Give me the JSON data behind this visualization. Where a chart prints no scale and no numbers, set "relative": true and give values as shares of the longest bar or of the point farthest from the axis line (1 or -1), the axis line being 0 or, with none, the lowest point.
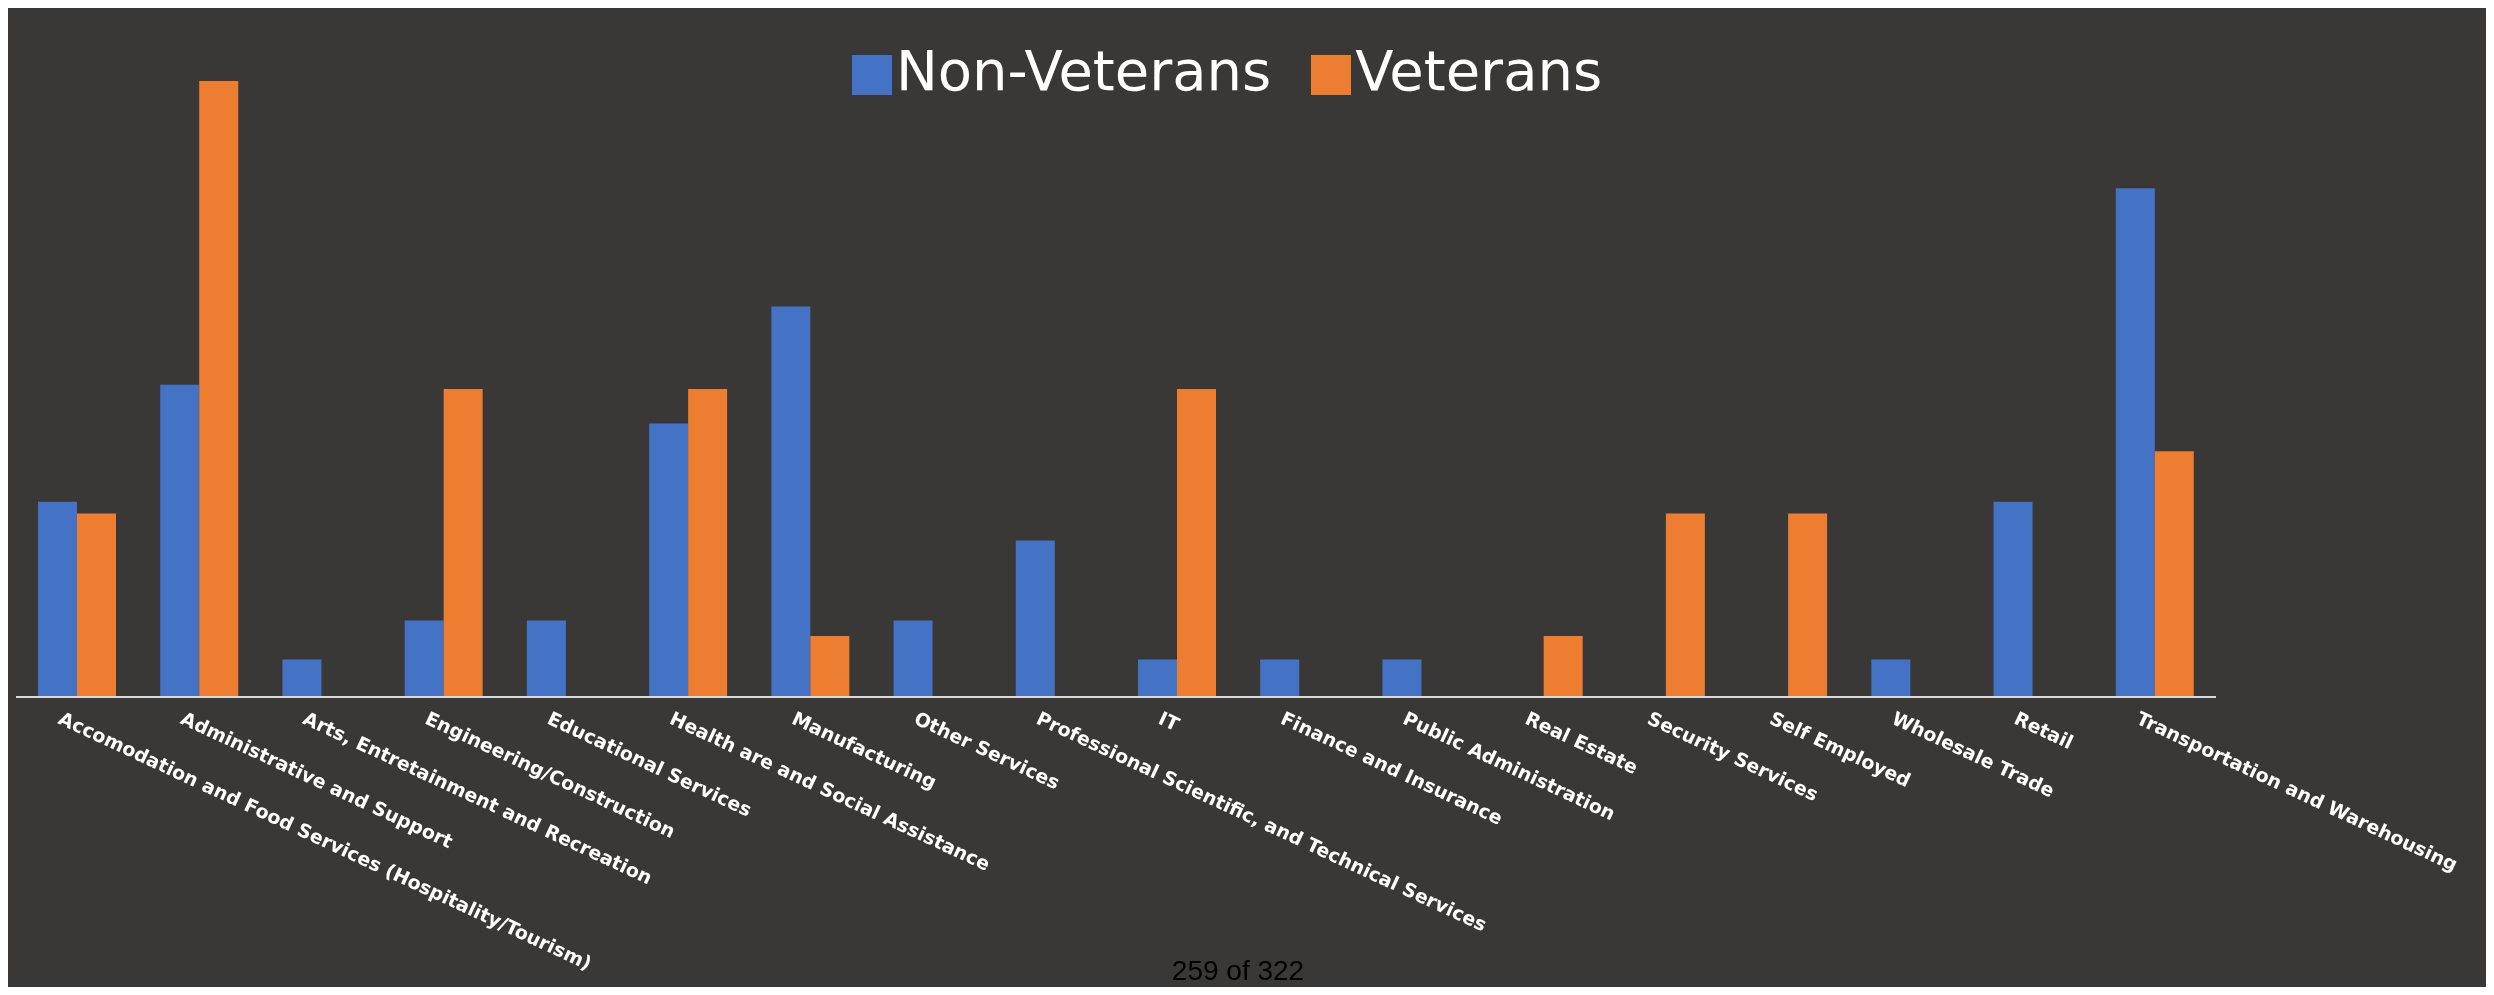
{
  "chart_data": {
    "type": "bar",
    "relative": true,
    "categories": [
      "Accomodation and Food Services (Hospitality/Tourism)",
      "Administrative and Support",
      "Arts, Entretainment and Recreation",
      "Engineering/Construction",
      "Educational Services",
      "Health are and Social Assistance",
      "Manufacturing",
      "Other Services",
      "Professional Scientific, and Technical Services",
      "IT",
      "Finance and Insurance",
      "Public Administration",
      "Real Estate",
      "Security Services",
      "Self Employed",
      "Wholesale Trade",
      "Retail",
      "Transportation and Warehousing"
    ],
    "series": [
      {
        "name": "Non-Veterans",
        "color": "#4472c4",
        "values": [
          0.317,
          0.507,
          0.061,
          0.124,
          0.124,
          0.444,
          0.634,
          0.124,
          0.254,
          0.061,
          0.061,
          0.061,
          0,
          0,
          0,
          0.061,
          0.317,
          0.826
        ]
      },
      {
        "name": "Veterans",
        "color": "#ed7d31",
        "values": [
          0.298,
          1,
          0,
          0.5,
          0,
          0.5,
          0.099,
          0,
          0,
          0.5,
          0,
          0,
          0.099,
          0.298,
          0.298,
          0,
          0,
          0.399
        ]
      }
    ],
    "legend": "top",
    "grid": false,
    "annotations": [
      "259 of 322"
    ]
  }
}
